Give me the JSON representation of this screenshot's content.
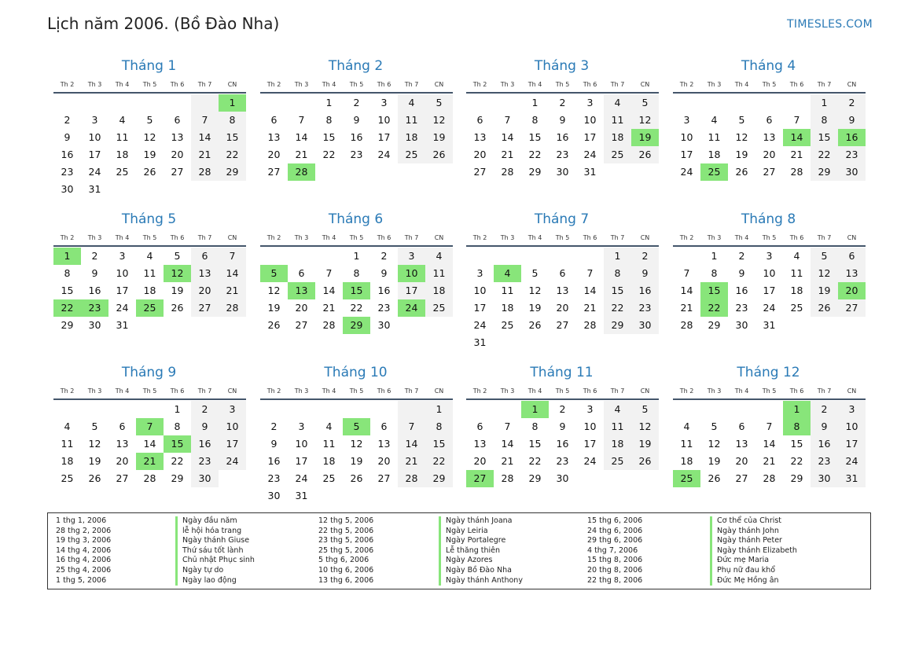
{
  "header": {
    "title": "Lịch năm 2006. (Bồ Đào Nha)",
    "site": "TIMESLES.COM"
  },
  "weekdays": [
    "Th 2",
    "Th 3",
    "Th 4",
    "Th 5",
    "Th 6",
    "Th 7",
    "CN"
  ],
  "months": [
    {
      "name": "Tháng 1",
      "offset": 6,
      "days": 31,
      "holidays": [
        1
      ]
    },
    {
      "name": "Tháng 2",
      "offset": 2,
      "days": 28,
      "holidays": [
        28
      ]
    },
    {
      "name": "Tháng 3",
      "offset": 2,
      "days": 31,
      "holidays": [
        19
      ]
    },
    {
      "name": "Tháng 4",
      "offset": 5,
      "days": 30,
      "holidays": [
        14,
        16,
        25
      ]
    },
    {
      "name": "Tháng 5",
      "offset": 0,
      "days": 31,
      "holidays": [
        1,
        12,
        22,
        23,
        25
      ]
    },
    {
      "name": "Tháng 6",
      "offset": 3,
      "days": 30,
      "holidays": [
        5,
        10,
        13,
        15,
        24,
        29
      ]
    },
    {
      "name": "Tháng 7",
      "offset": 5,
      "days": 31,
      "holidays": [
        4
      ]
    },
    {
      "name": "Tháng 8",
      "offset": 1,
      "days": 31,
      "holidays": [
        15,
        20,
        22
      ]
    },
    {
      "name": "Tháng 9",
      "offset": 4,
      "days": 30,
      "holidays": [
        7,
        15,
        21
      ]
    },
    {
      "name": "Tháng 10",
      "offset": 6,
      "days": 31,
      "holidays": [
        5
      ]
    },
    {
      "name": "Tháng 11",
      "offset": 2,
      "days": 30,
      "holidays": [
        1,
        27
      ]
    },
    {
      "name": "Tháng 12",
      "offset": 4,
      "days": 31,
      "holidays": [
        1,
        8,
        25
      ]
    }
  ],
  "legend": [
    {
      "date": "1 thg 1, 2006",
      "name": "Ngày đầu năm"
    },
    {
      "date": "28 thg 2, 2006",
      "name": "lễ hội hóa trang"
    },
    {
      "date": "19 thg 3, 2006",
      "name": "Ngày thánh Giuse"
    },
    {
      "date": "14 thg 4, 2006",
      "name": "Thứ sáu tốt lành"
    },
    {
      "date": "16 thg 4, 2006",
      "name": "Chủ nhật Phục sinh"
    },
    {
      "date": "25 thg 4, 2006",
      "name": "Ngày tự do"
    },
    {
      "date": "1 thg 5, 2006",
      "name": "Ngày lao động"
    },
    {
      "date": "12 thg 5, 2006",
      "name": "Ngày thánh Joana"
    },
    {
      "date": "22 thg 5, 2006",
      "name": "Ngày Leiria"
    },
    {
      "date": "23 thg 5, 2006",
      "name": "Ngày Portalegre"
    },
    {
      "date": "25 thg 5, 2006",
      "name": "Lễ thăng thiên"
    },
    {
      "date": "5 thg 6, 2006",
      "name": "Ngày Azores"
    },
    {
      "date": "10 thg 6, 2006",
      "name": "Ngày Bồ Đào Nha"
    },
    {
      "date": "13 thg 6, 2006",
      "name": "Ngày thánh Anthony"
    },
    {
      "date": "15 thg 6, 2006",
      "name": "Cơ thể của Christ"
    },
    {
      "date": "24 thg 6, 2006",
      "name": "Ngày thánh John"
    },
    {
      "date": "29 thg 6, 2006",
      "name": "Ngày thánh Peter"
    },
    {
      "date": "4 thg 7, 2006",
      "name": "Ngày thánh Elizabeth"
    },
    {
      "date": "15 thg 8, 2006",
      "name": "Đức mẹ Maria"
    },
    {
      "date": "20 thg 8, 2006",
      "name": "Phụ nữ đau khổ"
    },
    {
      "date": "22 thg 8, 2006",
      "name": "Đức Mẹ Hồng ân"
    }
  ],
  "colors": {
    "accent": "#2a7ab6",
    "holiday": "#88e57a",
    "weekend": "#f2f2f2"
  }
}
